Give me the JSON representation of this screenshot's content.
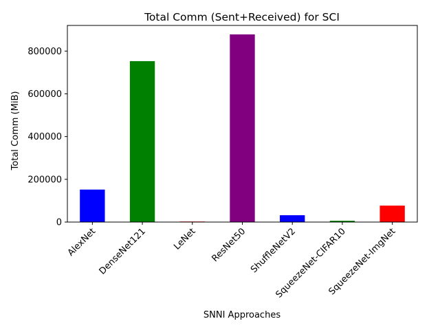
{
  "chart_data": {
    "type": "bar",
    "title": "Total Comm (Sent+Received) for SCI",
    "xlabel": "SNNI Approaches",
    "ylabel": "Total Comm (MiB)",
    "categories": [
      "AlexNet",
      "DenseNet121",
      "LeNet",
      "ResNet50",
      "ShuffleNetV2",
      "SqueezeNet-CIFAR10",
      "SqueezeNet-ImgNet"
    ],
    "values": [
      152000,
      753000,
      2500,
      878000,
      32000,
      6000,
      77000
    ],
    "colors": [
      "#0000ff",
      "#008000",
      "#ff0000",
      "#800080",
      "#0000ff",
      "#008000",
      "#ff0000"
    ],
    "ylim": [
      0,
      920000
    ],
    "yticks": [
      0,
      200000,
      400000,
      600000,
      800000
    ],
    "ytick_labels": [
      "0",
      "200000",
      "400000",
      "600000",
      "800000"
    ],
    "grid": false,
    "legend": false
  }
}
